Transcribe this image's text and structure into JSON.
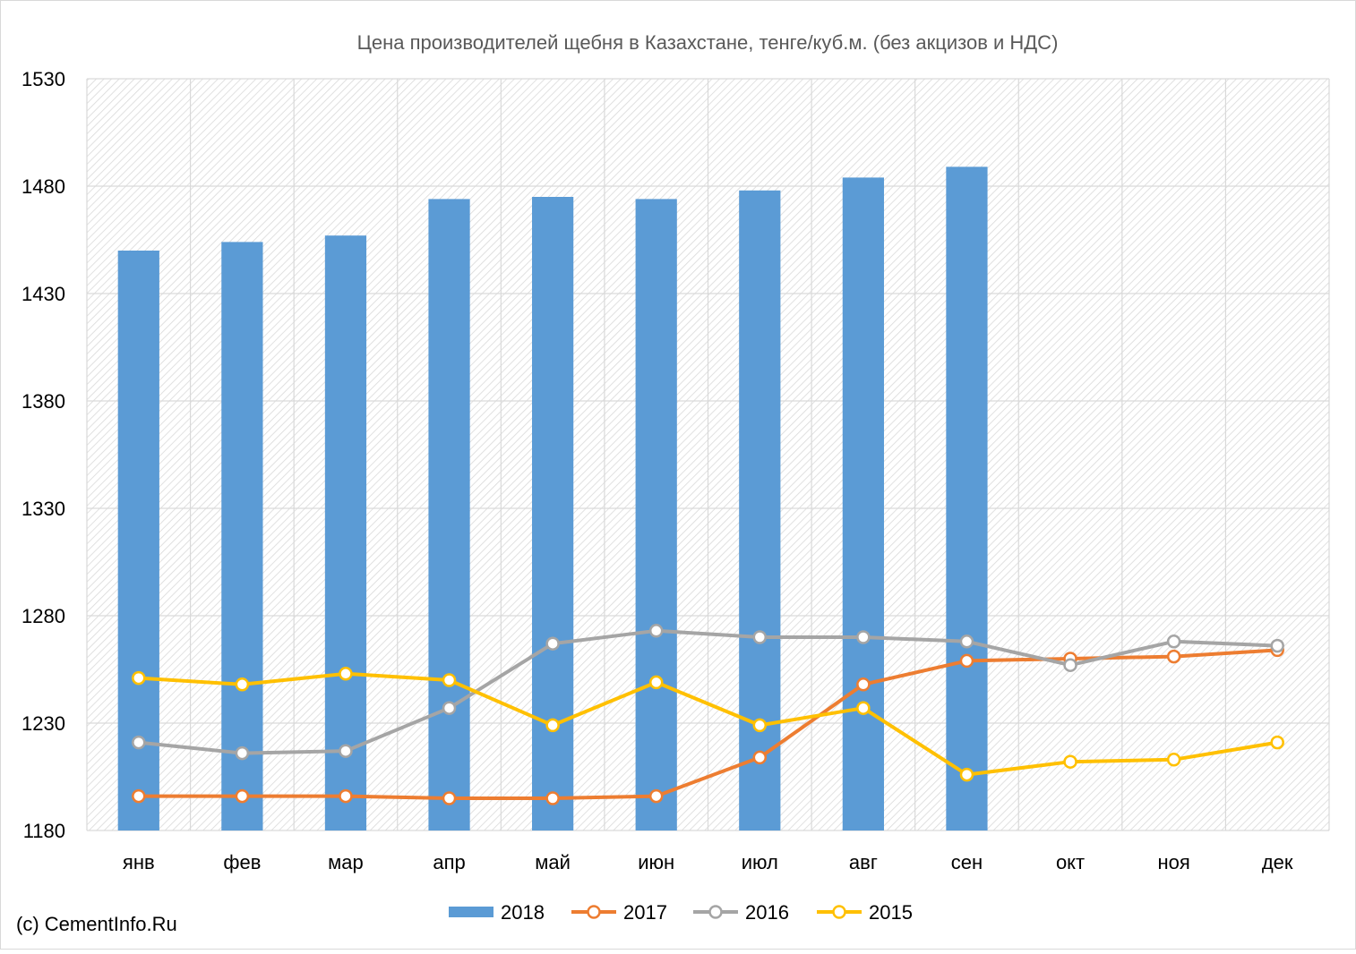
{
  "chart_data": {
    "type": "bar",
    "title": "Цена производителей щебня в Казахстане, тенге/куб.м. (без акцизов и НДС)",
    "xlabel": "",
    "ylabel": "",
    "ylim": [
      1180,
      1530
    ],
    "yticks": [
      1180,
      1230,
      1280,
      1330,
      1380,
      1430,
      1480,
      1530
    ],
    "categories": [
      "янв",
      "фев",
      "мар",
      "апр",
      "май",
      "июн",
      "июл",
      "авг",
      "сен",
      "окт",
      "ноя",
      "дек"
    ],
    "grid": true,
    "legend_position": "bottom",
    "series": [
      {
        "name": "2018",
        "type": "bar",
        "color": "#5b9bd5",
        "values": [
          1450,
          1454,
          1457,
          1474,
          1475,
          1474,
          1478,
          1484,
          1489,
          null,
          null,
          null
        ]
      },
      {
        "name": "2017",
        "type": "line",
        "color": "#ed7d31",
        "values": [
          1196,
          1196,
          1196,
          1195,
          1195,
          1196,
          1214,
          1248,
          1259,
          1260,
          1261,
          1264
        ]
      },
      {
        "name": "2016",
        "type": "line",
        "color": "#a5a5a5",
        "values": [
          1221,
          1216,
          1217,
          1237,
          1267,
          1273,
          1270,
          1270,
          1268,
          1257,
          1268,
          1266
        ]
      },
      {
        "name": "2015",
        "type": "line",
        "color": "#ffc000",
        "values": [
          1251,
          1248,
          1253,
          1250,
          1229,
          1249,
          1229,
          1237,
          1206,
          1212,
          1213,
          1221
        ]
      }
    ]
  },
  "footer": {
    "credit": "(c) CementInfo.Ru"
  }
}
